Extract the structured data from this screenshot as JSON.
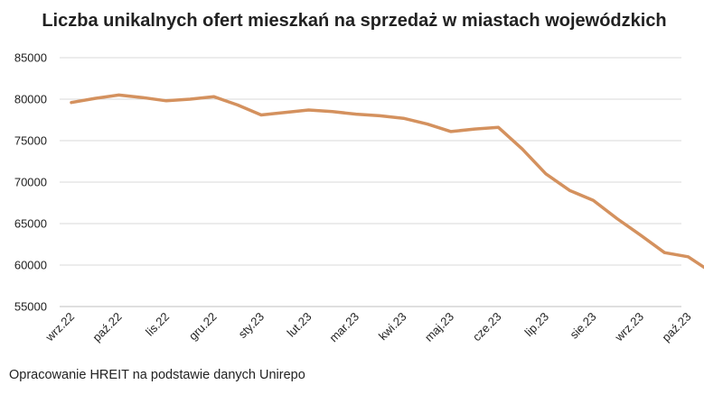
{
  "chart_data": {
    "type": "line",
    "title": "Liczba unikalnych ofert mieszkań na sprzedaż w miastach wojewódzkich",
    "source": "Opracowanie HREIT na podstawie danych Unirepo",
    "xlabel": "",
    "ylabel": "",
    "ylim": [
      55000,
      85000
    ],
    "yticks": [
      55000,
      60000,
      65000,
      70000,
      75000,
      80000,
      85000
    ],
    "x_tick_labels": [
      "wrz.22",
      "paź.22",
      "lis.22",
      "gru.22",
      "sty.23",
      "lut.23",
      "mar.23",
      "kwi.23",
      "maj.23",
      "cze.23",
      "lip.23",
      "sie.23",
      "wrz.23",
      "paź.23"
    ],
    "grid": true,
    "legend": "none",
    "line_color": "#D4915E",
    "series": [
      {
        "x": [
          0,
          0.5,
          1,
          1.5,
          2,
          2.5,
          3,
          3.5,
          4,
          4.5,
          5,
          5.5,
          6,
          6.5,
          7,
          7.5,
          8,
          8.5,
          9,
          9.5,
          10,
          10.5,
          11,
          11.5,
          12,
          12.5,
          13,
          13.5
        ],
        "values": [
          79600,
          80100,
          80500,
          80200,
          79800,
          80000,
          80300,
          79300,
          78100,
          78400,
          78700,
          78500,
          78200,
          78000,
          77700,
          77000,
          76100,
          76400,
          76600,
          74000,
          71000,
          69000,
          67800,
          65600,
          63600,
          61500,
          61000,
          59100
        ]
      }
    ]
  }
}
